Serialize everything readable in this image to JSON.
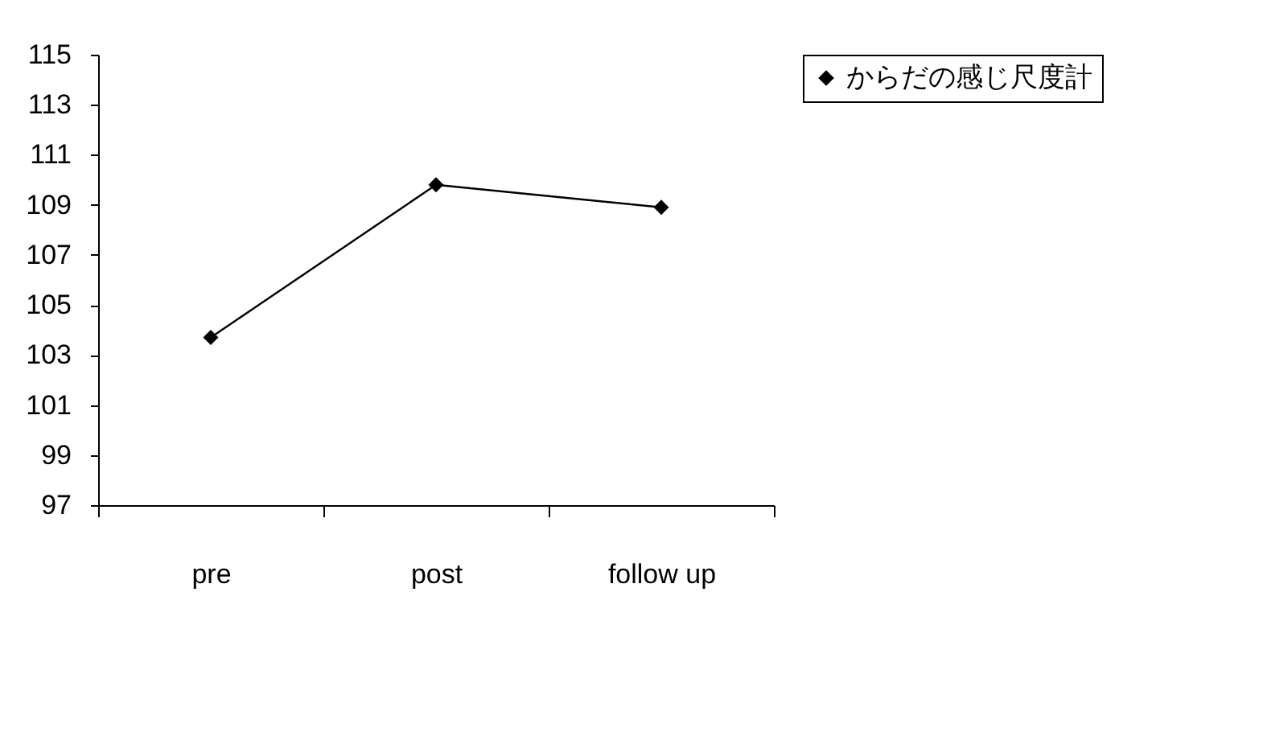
{
  "chart_data": {
    "type": "line",
    "categories": [
      "pre",
      "post",
      "follow up"
    ],
    "series": [
      {
        "name": "からだの感じ尺度計",
        "color": "#000000",
        "values": [
          103.7,
          109.8,
          108.9
        ]
      }
    ],
    "ylim": [
      97,
      115
    ],
    "yticks": [
      97,
      99,
      101,
      103,
      105,
      107,
      109,
      111,
      113,
      115
    ],
    "grid": false,
    "legend": "right",
    "marker": "diamond",
    "line_style": "solid"
  }
}
